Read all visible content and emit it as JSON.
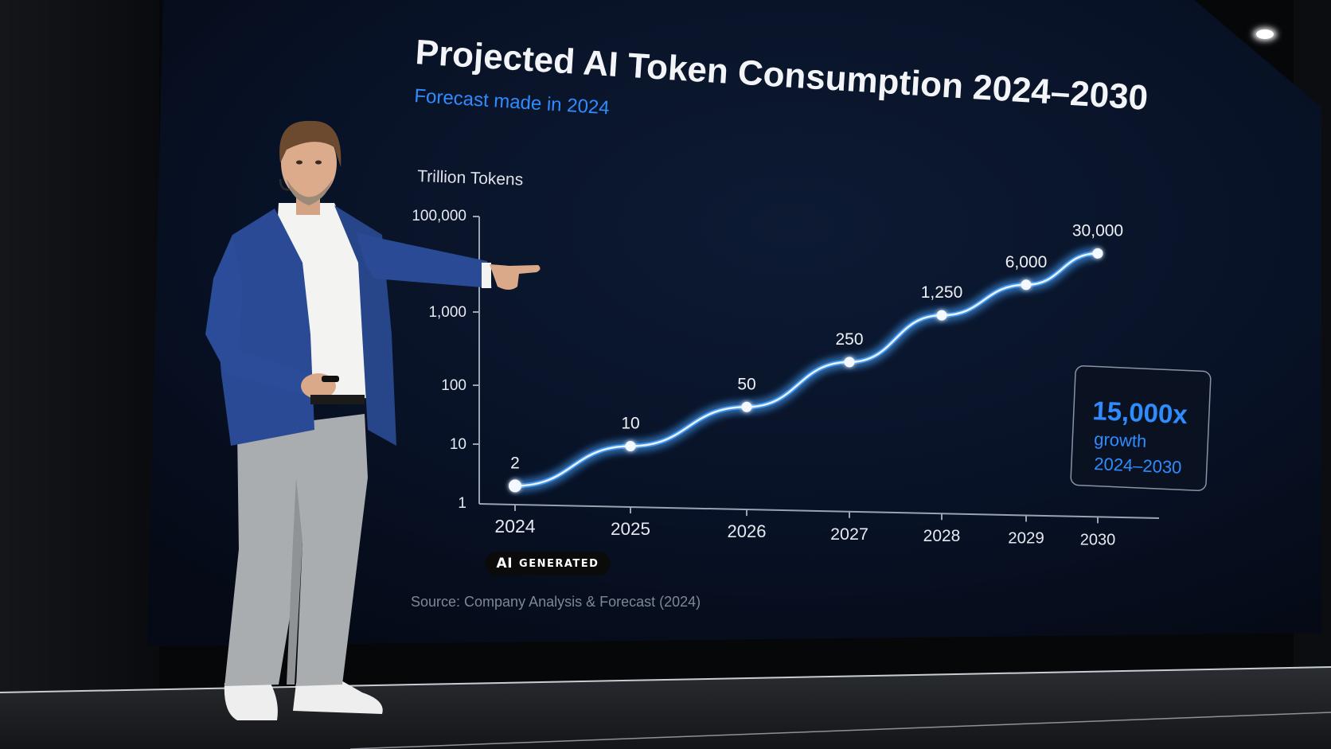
{
  "slide": {
    "title": "Projected AI Token Consumption 2024–2030",
    "subtitle": "Forecast made in 2024",
    "source": "Source: Company Analysis & Forecast (2024)"
  },
  "callout": {
    "multiplier": "15,000x",
    "line1": "growth",
    "line2": "2024–2030"
  },
  "badge": {
    "ai": "AI",
    "text": "GENERATED"
  },
  "colors": {
    "screen": "#070d1c",
    "accent": "#2f8cff",
    "line_glow": "#4aa3ff",
    "jacket": "#2a4a95",
    "trousers": "#a9adb0"
  },
  "chart_data": {
    "type": "line",
    "ylabel": "Trillion Tokens",
    "y_scale": "log",
    "ylim": [
      1,
      100000
    ],
    "y_ticks": [
      "100,000",
      "1,000",
      "100",
      "10",
      "1"
    ],
    "x": [
      "2024",
      "2025",
      "2026",
      "2027",
      "2028",
      "2029",
      "2030"
    ],
    "series": [
      {
        "values": [
          2,
          10,
          50,
          250,
          1250,
          6000,
          30000
        ],
        "labels": [
          "2",
          "10",
          "50",
          "250",
          "1,250",
          "6,000",
          "30,000"
        ]
      }
    ]
  }
}
